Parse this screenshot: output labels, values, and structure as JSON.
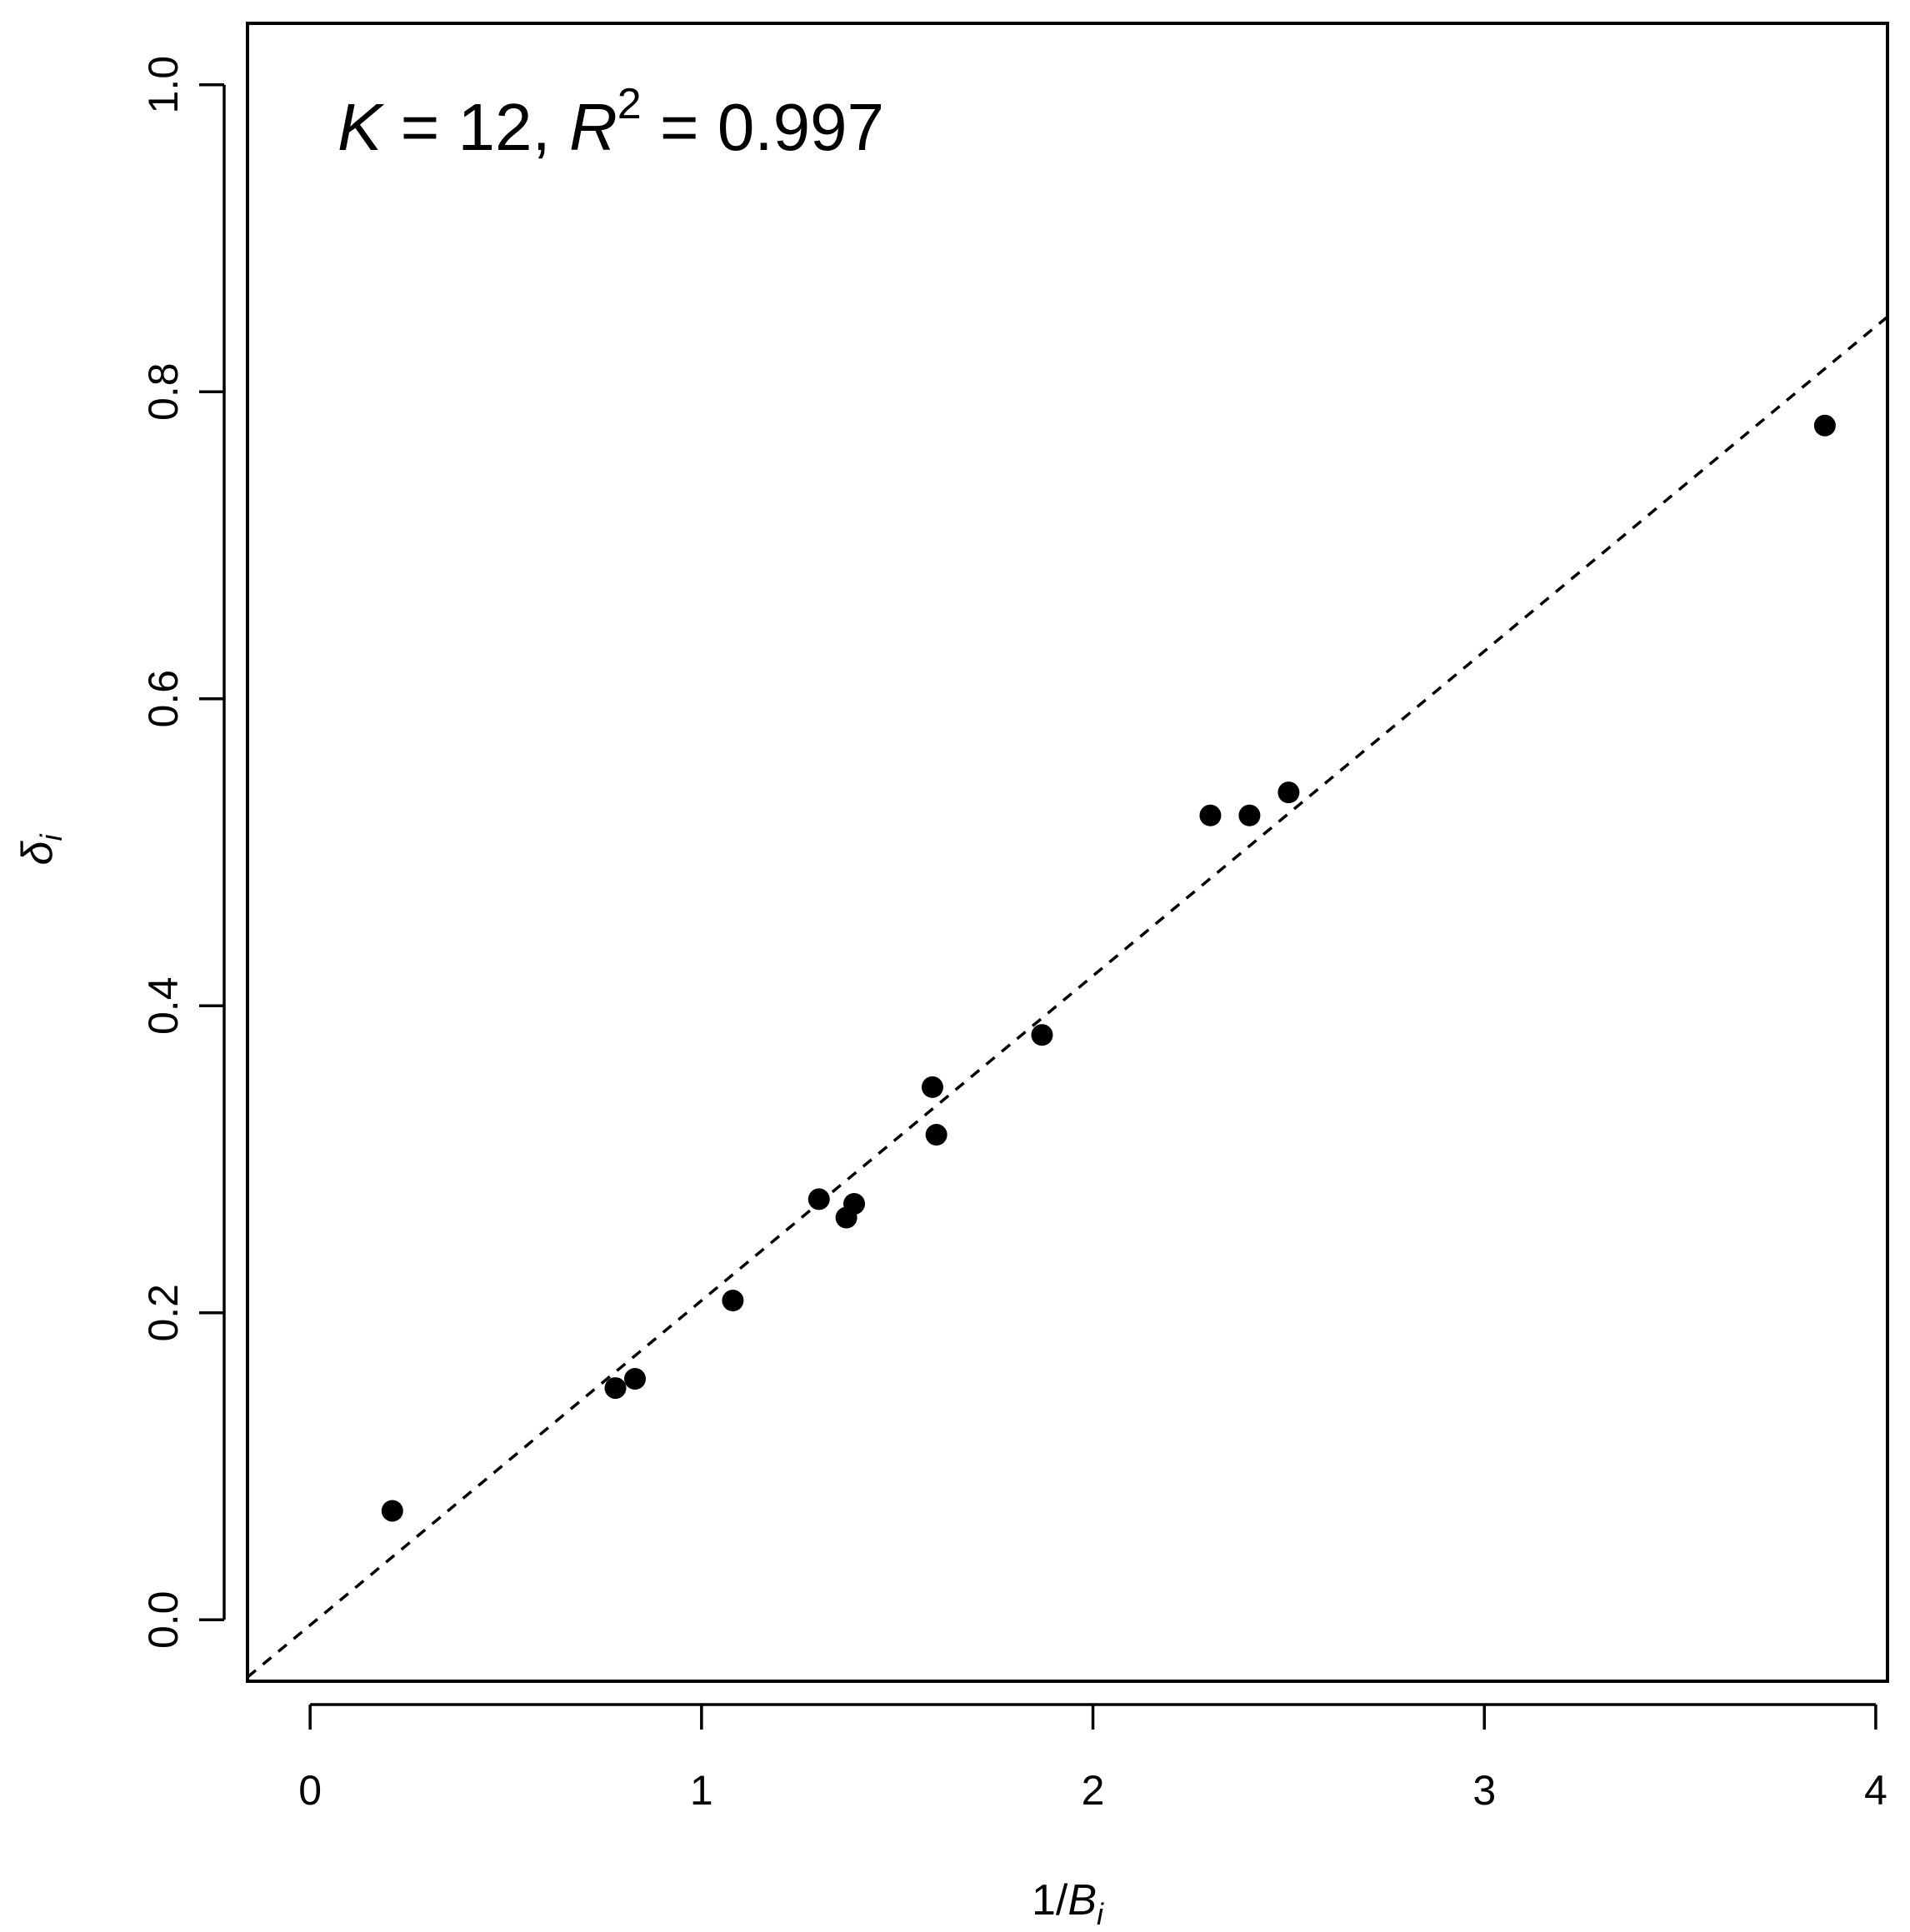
{
  "chart_data": {
    "type": "scatter",
    "title": "",
    "xlabel": "1/B_i",
    "ylabel": "δ_i",
    "xlim": [
      -0.16,
      4.03
    ],
    "ylim": [
      -0.04,
      1.04
    ],
    "x_ticks": [
      "0",
      "1",
      "2",
      "3",
      "4"
    ],
    "y_ticks": [
      "0.0",
      "0.2",
      "0.4",
      "0.6",
      "0.8",
      "1.0"
    ],
    "annotation": {
      "k_symbol": "K",
      "k_text": " = 12, ",
      "r_symbol": "R",
      "r_superscript": "2",
      "r_text": " = 0.997"
    },
    "x_axis_label": {
      "prefix": "1/",
      "symbol": "B",
      "subscript": "i"
    },
    "y_axis_label": {
      "symbol": "δ",
      "subscript": "i"
    },
    "points": [
      {
        "x": 0.21,
        "y": 0.071
      },
      {
        "x": 0.78,
        "y": 0.151
      },
      {
        "x": 0.83,
        "y": 0.157
      },
      {
        "x": 1.08,
        "y": 0.208
      },
      {
        "x": 1.3,
        "y": 0.274
      },
      {
        "x": 1.37,
        "y": 0.262
      },
      {
        "x": 1.39,
        "y": 0.271
      },
      {
        "x": 1.59,
        "y": 0.347
      },
      {
        "x": 1.6,
        "y": 0.316
      },
      {
        "x": 1.87,
        "y": 0.381
      },
      {
        "x": 2.3,
        "y": 0.524
      },
      {
        "x": 2.4,
        "y": 0.524
      },
      {
        "x": 2.5,
        "y": 0.539
      },
      {
        "x": 3.87,
        "y": 0.778
      }
    ],
    "fit_line": {
      "style": "dashed",
      "slope": 0.2115,
      "intercept": -0.0035
    },
    "grid": false,
    "legend": "none"
  }
}
